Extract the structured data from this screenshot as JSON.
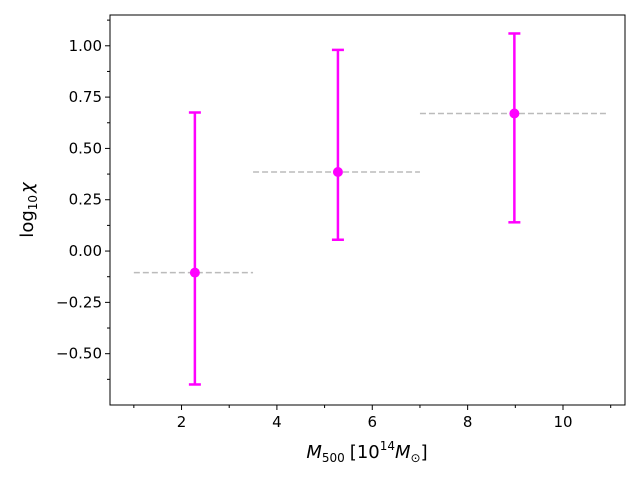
{
  "chart_data": {
    "type": "scatter",
    "xlabel": {
      "base": "M",
      "sub": "500",
      "bracket_open": "[10",
      "sup": "14",
      "mass": "M",
      "mass_sub": "⊙",
      "bracket_close": "]"
    },
    "ylabel": {
      "prefix": "log",
      "sub": "10",
      "symbol": "χ"
    },
    "xlim": [
      0.5,
      11.3
    ],
    "ylim": [
      -0.75,
      1.15
    ],
    "x_ticks": [
      2,
      4,
      6,
      8,
      10
    ],
    "x_tick_labels": [
      "2",
      "4",
      "6",
      "8",
      "10"
    ],
    "x_minor_ticks": [
      1,
      3,
      5,
      7,
      9,
      11
    ],
    "y_ticks": [
      -0.5,
      -0.25,
      0.0,
      0.25,
      0.5,
      0.75,
      1.0
    ],
    "y_tick_labels": [
      "−0.50",
      "−0.25",
      "0.00",
      "0.25",
      "0.50",
      "0.75",
      "1.00"
    ],
    "y_minor_ticks": [
      -0.625,
      -0.375,
      -0.125,
      0.125,
      0.375,
      0.625,
      0.875,
      1.125
    ],
    "grid": false,
    "series": [
      {
        "marker_color": "#ff00ff",
        "points": [
          {
            "x": 2.28,
            "y": -0.105,
            "y_low": -0.65,
            "y_high": 0.675
          },
          {
            "x": 5.28,
            "y": 0.385,
            "y_low": 0.055,
            "y_high": 0.98
          },
          {
            "x": 8.98,
            "y": 0.67,
            "y_low": 0.14,
            "y_high": 1.06
          }
        ]
      }
    ],
    "reference_lines": {
      "color": "#bbbbbb",
      "style": "dashed",
      "segments": [
        {
          "x_start": 1.0,
          "x_end": 3.5,
          "y": -0.105
        },
        {
          "x_start": 3.5,
          "x_end": 7.0,
          "y": 0.385
        },
        {
          "x_start": 7.0,
          "x_end": 10.9,
          "y": 0.67
        }
      ]
    }
  }
}
